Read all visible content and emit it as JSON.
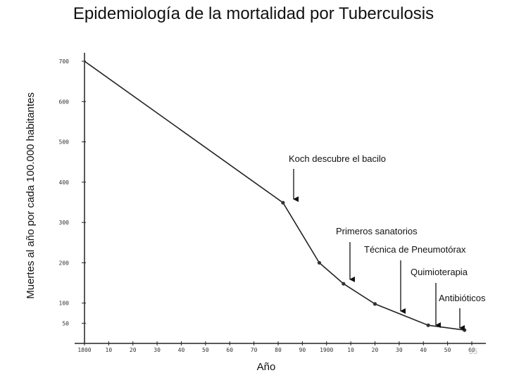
{
  "chart_data": {
    "type": "line",
    "title": "Epidemiología de la mortalidad por Tuberculosis",
    "xlabel": "Año",
    "ylabel": "Muertes al año por cada 100.000 habitantes",
    "xlim": [
      1800,
      1960
    ],
    "ylim": [
      0,
      700
    ],
    "x_ticks": [
      {
        "value": 1800,
        "label": "1800"
      },
      {
        "value": 1810,
        "label": "10"
      },
      {
        "value": 1820,
        "label": "20"
      },
      {
        "value": 1830,
        "label": "30"
      },
      {
        "value": 1840,
        "label": "40"
      },
      {
        "value": 1850,
        "label": "50"
      },
      {
        "value": 1860,
        "label": "60"
      },
      {
        "value": 1870,
        "label": "70"
      },
      {
        "value": 1880,
        "label": "80"
      },
      {
        "value": 1890,
        "label": "90"
      },
      {
        "value": 1900,
        "label": "1900"
      },
      {
        "value": 1910,
        "label": "10"
      },
      {
        "value": 1920,
        "label": "20"
      },
      {
        "value": 1930,
        "label": "30"
      },
      {
        "value": 1940,
        "label": "40"
      },
      {
        "value": 1950,
        "label": "50"
      },
      {
        "value": 1960,
        "label": "60"
      }
    ],
    "y_ticks": [
      {
        "value": 700,
        "label": "700"
      },
      {
        "value": 600,
        "label": "600"
      },
      {
        "value": 500,
        "label": "500"
      },
      {
        "value": 400,
        "label": "400"
      },
      {
        "value": 300,
        "label": "300"
      },
      {
        "value": 200,
        "label": "200"
      },
      {
        "value": 100,
        "label": "100"
      },
      {
        "value": 50,
        "label": "50"
      }
    ],
    "grid": false,
    "series": [
      {
        "x": [
          1800,
          1882,
          1897,
          1907,
          1920,
          1942,
          1957
        ],
        "y": [
          700,
          349,
          200,
          148,
          98,
          45,
          33
        ]
      }
    ],
    "markers_at_x": [
      1882,
      1897,
      1907,
      1920,
      1942,
      1957
    ],
    "annotations": [
      {
        "text": "Koch descubre el bacilo",
        "x": 1882
      },
      {
        "text": "Primeros sanatorios",
        "x": 1908
      },
      {
        "text": "Técnica de Pneumotórax",
        "x": 1930
      },
      {
        "text": "Quimioterapia",
        "x": 1947
      },
      {
        "text": "Antibióticos",
        "x": 1955
      }
    ]
  },
  "page_number": "35",
  "colors": {
    "line": "#222222",
    "marker": "#333333",
    "axis": "#222222"
  }
}
